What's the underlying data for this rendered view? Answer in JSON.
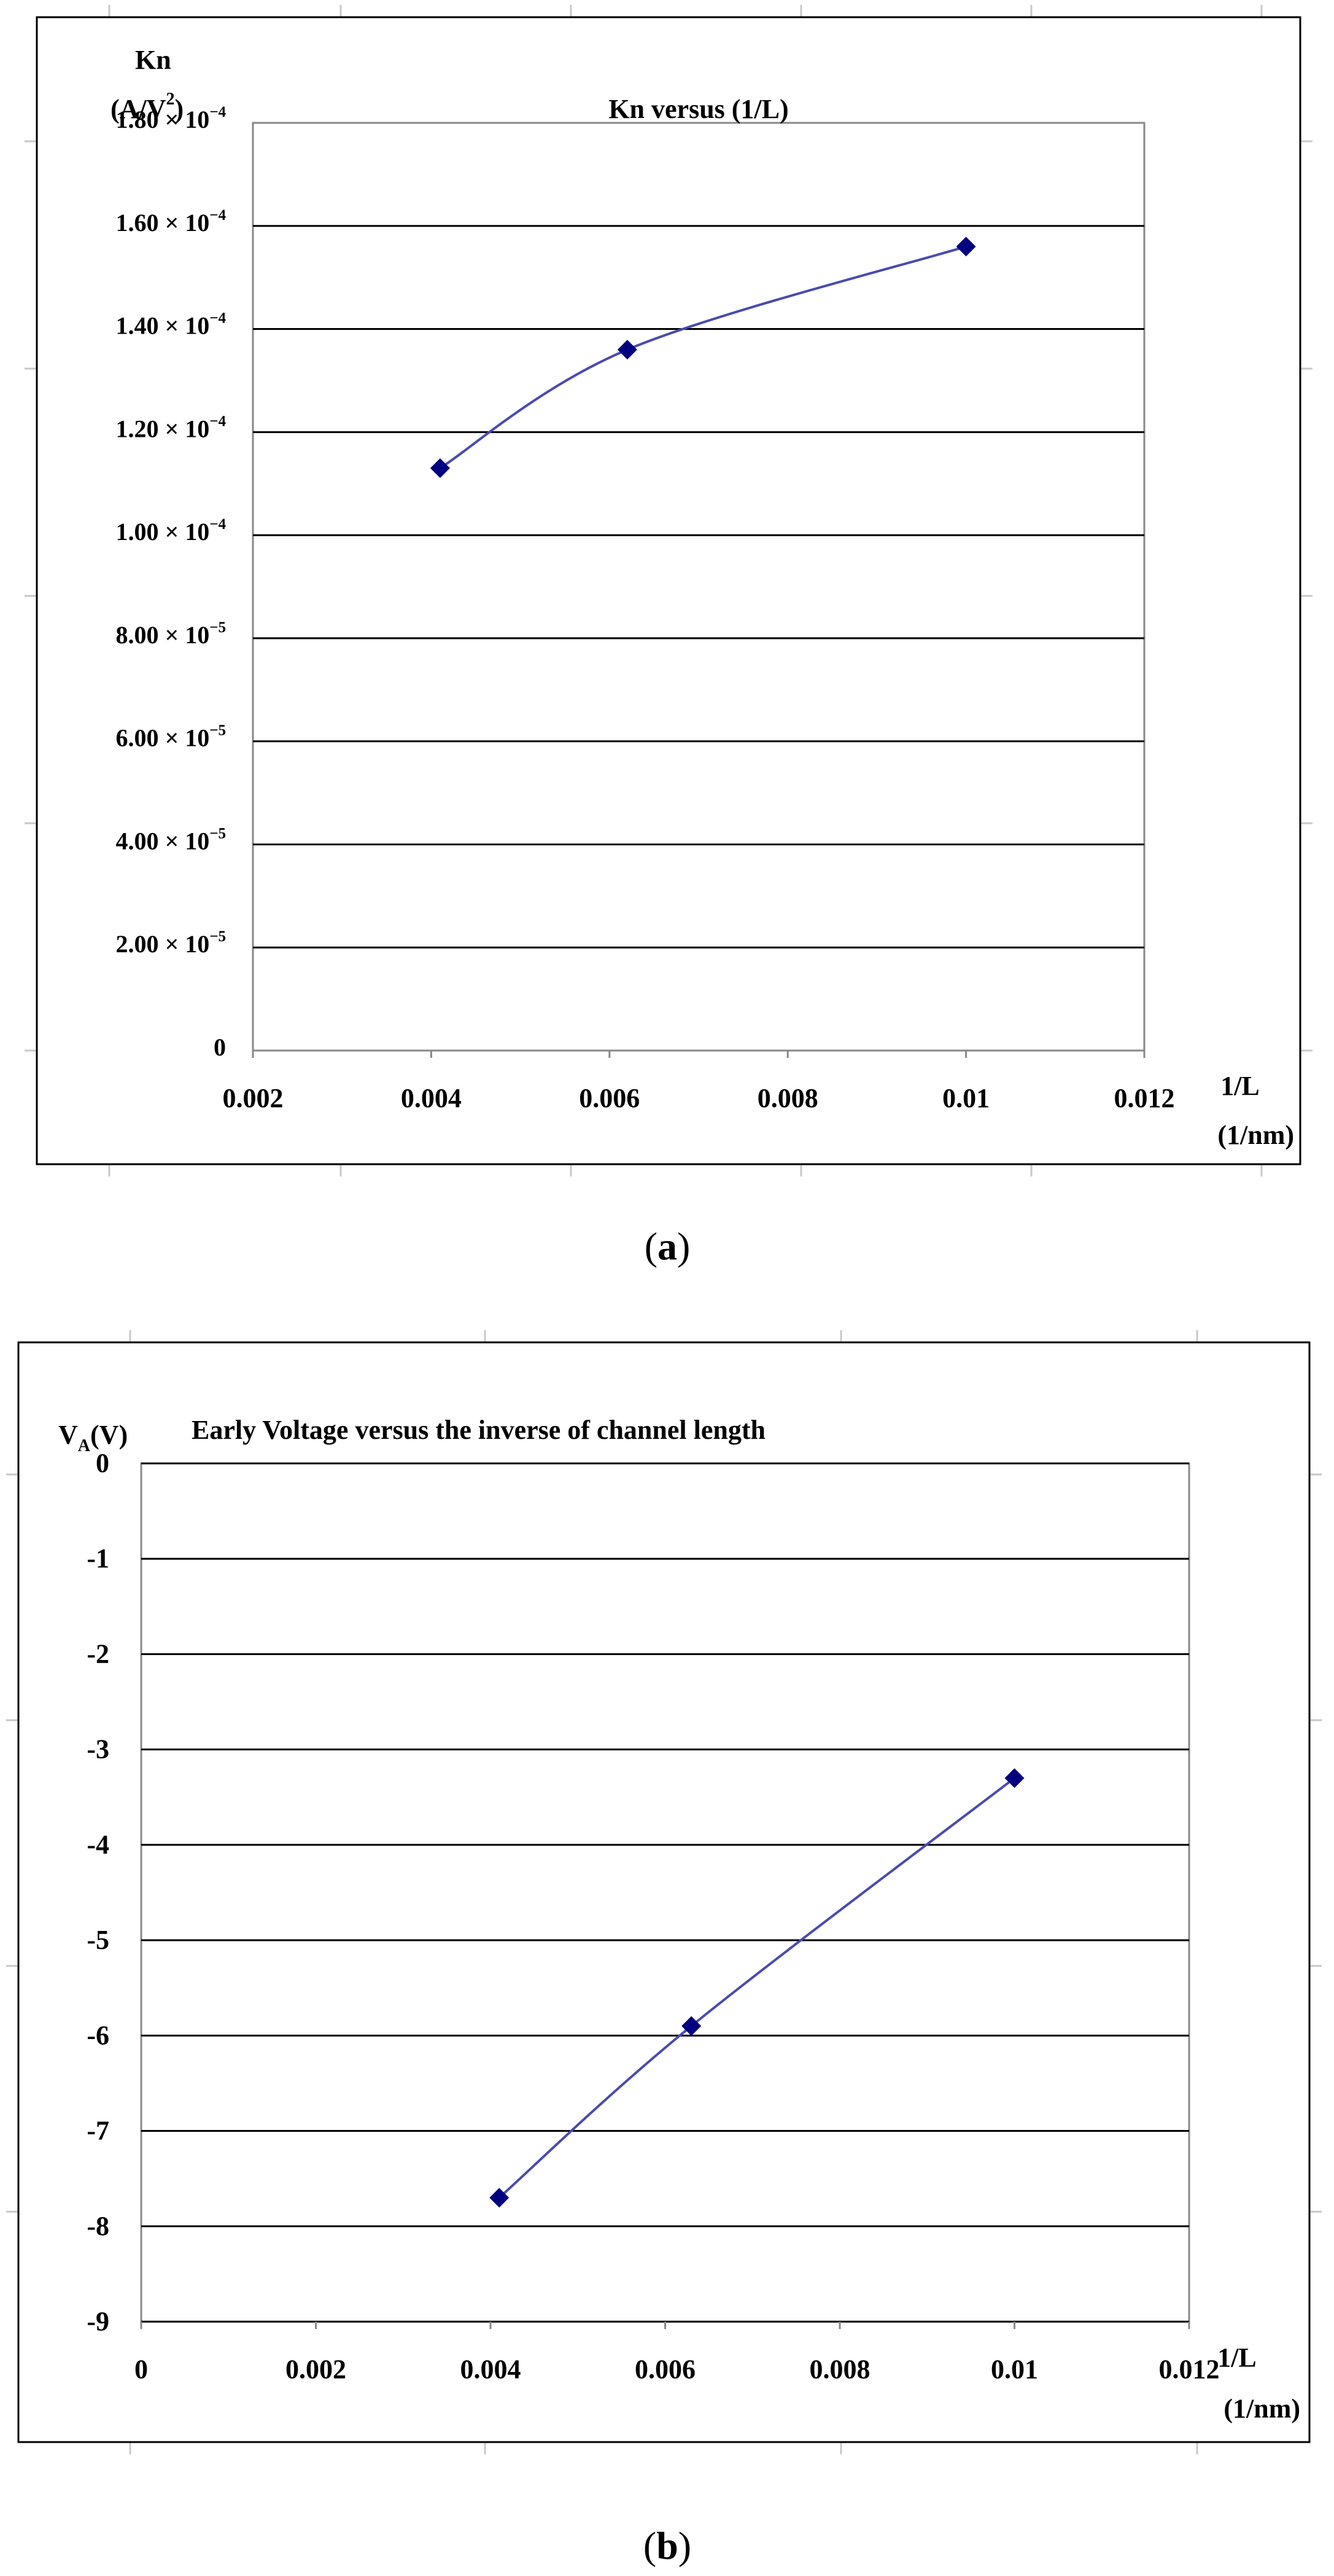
{
  "colors": {
    "series": "#4a4ab0",
    "marker": "#000080",
    "grid": "#000000",
    "frame": "#000000"
  },
  "chart_data": [
    {
      "type": "line",
      "title": "Kn versus (1/L)",
      "ylabel_line1": "Kn",
      "ylabel_unit": "(A/V",
      "ylabel_unit_sup": "2",
      "ylabel_unit_close": ")",
      "xlabel": "1/L",
      "xlabel_unit": "(1/nm)",
      "caption_open": "(",
      "caption": "a",
      "caption_close": ")",
      "xlim": [
        0.002,
        0.012
      ],
      "ylim": [
        0,
        0.00018
      ],
      "xticks": [
        {
          "value": 0.002,
          "label": "0.002"
        },
        {
          "value": 0.004,
          "label": "0.004"
        },
        {
          "value": 0.006,
          "label": "0.006"
        },
        {
          "value": 0.008,
          "label": "0.008"
        },
        {
          "value": 0.01,
          "label": "0.01"
        },
        {
          "value": 0.012,
          "label": "0.012"
        }
      ],
      "yticks": [
        {
          "value": 0,
          "mant": "0",
          "exp": ""
        },
        {
          "value": 2e-05,
          "mant": "2.00 × 10",
          "exp": "−5"
        },
        {
          "value": 4e-05,
          "mant": "4.00 × 10",
          "exp": "−5"
        },
        {
          "value": 6e-05,
          "mant": "6.00 × 10",
          "exp": "−5"
        },
        {
          "value": 8e-05,
          "mant": "8.00 × 10",
          "exp": "−5"
        },
        {
          "value": 0.0001,
          "mant": "1.00 × 10",
          "exp": "−4"
        },
        {
          "value": 0.00012,
          "mant": "1.20 × 10",
          "exp": "−4"
        },
        {
          "value": 0.00014,
          "mant": "1.40 × 10",
          "exp": "−4"
        },
        {
          "value": 0.00016,
          "mant": "1.60 × 10",
          "exp": "−4"
        },
        {
          "value": 0.00018,
          "mant": "1.80 × 10",
          "exp": "−4"
        }
      ],
      "grid": true,
      "series": [
        {
          "x": [
            0.0041,
            0.0062,
            0.01
          ],
          "y": [
            0.000113,
            0.000136,
            0.000156
          ]
        }
      ]
    },
    {
      "type": "line",
      "title": "Early Voltage versus the inverse of channel length",
      "ylabel_main": "V",
      "ylabel_sub": "A",
      "ylabel_unit": "(V)",
      "xlabel": "1/L",
      "xlabel_unit": "(1/nm)",
      "caption_open": "(",
      "caption": "b",
      "caption_close": ")",
      "xlim": [
        0,
        0.012
      ],
      "ylim": [
        -9,
        0
      ],
      "xticks": [
        {
          "value": 0,
          "label": "0"
        },
        {
          "value": 0.002,
          "label": "0.002"
        },
        {
          "value": 0.004,
          "label": "0.004"
        },
        {
          "value": 0.006,
          "label": "0.006"
        },
        {
          "value": 0.008,
          "label": "0.008"
        },
        {
          "value": 0.01,
          "label": "0.01"
        },
        {
          "value": 0.012,
          "label": "0.012"
        }
      ],
      "yticks": [
        {
          "value": 0,
          "label": "0"
        },
        {
          "value": -1,
          "label": "-1"
        },
        {
          "value": -2,
          "label": "-2"
        },
        {
          "value": -3,
          "label": "-3"
        },
        {
          "value": -4,
          "label": "-4"
        },
        {
          "value": -5,
          "label": "-5"
        },
        {
          "value": -6,
          "label": "-6"
        },
        {
          "value": -7,
          "label": "-7"
        },
        {
          "value": -8,
          "label": "-8"
        },
        {
          "value": -9,
          "label": "-9"
        }
      ],
      "grid": true,
      "series": [
        {
          "x": [
            0.0041,
            0.0063,
            0.01
          ],
          "y": [
            -7.7,
            -5.9,
            -3.3
          ]
        }
      ]
    }
  ]
}
